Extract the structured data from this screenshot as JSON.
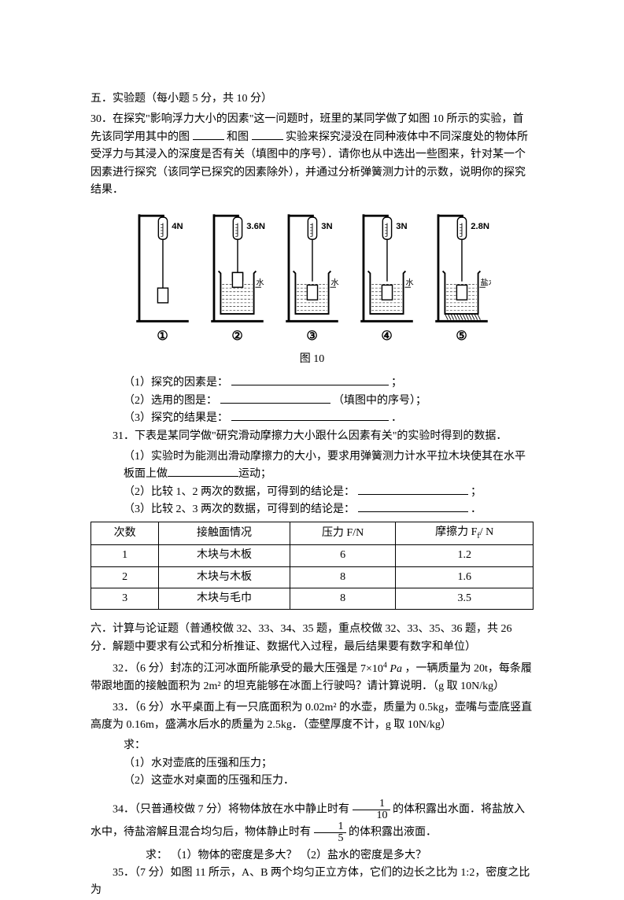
{
  "section5": {
    "title": "五．实验题（每小题 5 分，共 10 分）",
    "q30": {
      "intro": "30．在探究\"影响浮力大小的因素\"这一问题时，班里的某同学做了如图 10 所示的实验，首先该同学用其中的图",
      "mid1": "和图",
      "mid2": "实验来探究浸没在同种液体中不同深度处的物体所受浮力与其浸入的深度是否有关（填图中的序号）．请你也从中选出一些图来，针对某一个因素进行探究（该同学已探究的因素除外），并通过分析弹簧测力计的示数，说明你的探究结果．",
      "figures": [
        {
          "label": "4N",
          "liquid": "",
          "num": "①",
          "waterLevel": 0
        },
        {
          "label": "3.6N",
          "liquid": "水",
          "num": "②",
          "waterLevel": 0.4
        },
        {
          "label": "3N",
          "liquid": "水",
          "num": "③",
          "waterLevel": 0.7
        },
        {
          "label": "3N",
          "liquid": "水",
          "num": "④",
          "waterLevel": 0.9
        },
        {
          "label": "2.8N",
          "liquid": "盐水",
          "num": "⑤",
          "waterLevel": 0.9
        }
      ],
      "caption": "图 10",
      "sub1": "（1）探究的因素是：",
      "sub1_end": "；",
      "sub2": "（2）选用的图是：",
      "sub2_end": "（填图中的序号）；",
      "sub3": "（3）探究的结果是：",
      "sub3_end": "．"
    },
    "q31": {
      "intro": "31．下表是某同学做\"研究滑动摩擦力大小跟什么因素有关\"的实验时得到的数据．",
      "sub1_a": "（1）实验时为能测出滑动摩擦力的大小，要求用弹簧测力计水平拉木块使其在水平板面上做",
      "sub1_b": "运动；",
      "sub2": "（2）比较 1、2 两次的数据，可得到的结论是：",
      "sub2_end": "；",
      "sub3": "（3）比较 2、3 两次的数据，可得到的结论是：",
      "sub3_end": "．",
      "table": {
        "headers": [
          "次数",
          "接触面情况",
          "压力 F/N",
          "摩擦力 Ff / N"
        ],
        "rows": [
          [
            "1",
            "木块与木板",
            "6",
            "1.2"
          ],
          [
            "2",
            "木块与木板",
            "8",
            "1.6"
          ],
          [
            "3",
            "木块与毛巾",
            "8",
            "3.5"
          ]
        ]
      }
    }
  },
  "section6": {
    "title": "六．计算与论证题（普通校做 32、33、34、35 题，重点校做 32、33、35、36 题，共 26 分．解题中要求有公式和分析推证、数据代入过程，最后结果要有数字和单位）",
    "q32": {
      "text_a": "32．（6 分）封冻的江河冰面所能承受的最大压强是",
      "formula": "7×10⁴ Pa",
      "text_b": "，一辆质量为 20t，每条履带跟地面的接触面积为 2m² 的坦克能够在冰面上行驶吗？请计算说明．（g 取 10N/kg）"
    },
    "q33": {
      "intro": "33．（6 分）水平桌面上有一只底面积为 0.02m² 的水壶，质量为 0.5kg，壶嘴与壶底竖直高度为 0.16m，盛满水后水的质量为 2.5kg．（壶壁厚度不计，g 取 10N/kg）",
      "ask": "求：",
      "sub1": "（1）水对壶底的压强和压力；",
      "sub2": "（2）这壶水对桌面的压强和压力．"
    },
    "q34": {
      "text_a": "34．（只普通校做 7 分）将物体放在水中静止时有",
      "frac1_num": "1",
      "frac1_den": "10",
      "text_b": "的体积露出水面．将盐放入水中，待盐溶解且混合均匀后，物体静止时有",
      "frac2_num": "1",
      "frac2_den": "5",
      "text_c": "的体积露出液面．",
      "ask": "求：  （1）物体的密度是多大？  （2）盐水的密度是多大？"
    },
    "q35": {
      "text": "35．（7 分）如图 11 所示，A、B 两个均匀正立方体，它们的边长之比为 1:2，密度之比为"
    }
  }
}
